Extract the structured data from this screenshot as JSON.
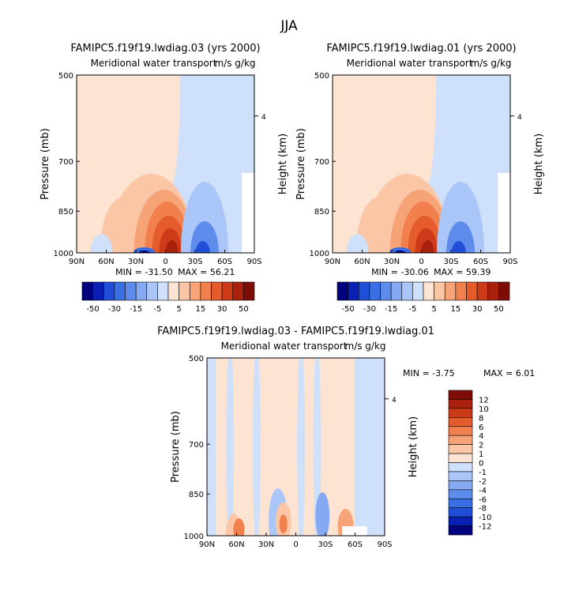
{
  "page_title": "JJA",
  "colors": {
    "neg": [
      "#00007f",
      "#0a1fb4",
      "#1f4fd8",
      "#3a6fe4",
      "#5e8ced",
      "#86aaf2",
      "#aac5f7",
      "#cfe0fb"
    ],
    "pos": [
      "#fde4d2",
      "#fbc6a6",
      "#f7a378",
      "#f2804e",
      "#e45c2c",
      "#cc3a18",
      "#a9200d",
      "#7d0d06"
    ]
  },
  "chart_data": [
    {
      "type": "heatmap",
      "title": "FAMIPC5.f19f19.lwdiag.03 (yrs 2000)",
      "subtitle": "Meridional water transport",
      "units": "m/s g/kg",
      "ylabel": "Pressure (mb)",
      "ylabel_right": "Height (km)",
      "yticks": [
        "500",
        "700",
        "850",
        "1000"
      ],
      "right_tick": "4",
      "xticks": [
        "90N",
        "60N",
        "30N",
        "0",
        "30S",
        "60S",
        "90S"
      ],
      "min_label": "MIN = -31.50",
      "max_label": "MAX = 56.21",
      "colorbar_labels": [
        "-50",
        "-30",
        "-15",
        "-5",
        "5",
        "15",
        "30",
        "50"
      ]
    },
    {
      "type": "heatmap",
      "title": "FAMIPC5.f19f19.lwdiag.01 (yrs 2000)",
      "subtitle": "Meridional water transport",
      "units": "m/s g/kg",
      "ylabel": "Pressure (mb)",
      "ylabel_right": "Height (km)",
      "yticks": [
        "500",
        "700",
        "850",
        "1000"
      ],
      "right_tick": "4",
      "xticks": [
        "90N",
        "60N",
        "30N",
        "0",
        "30S",
        "60S",
        "90S"
      ],
      "min_label": "MIN = -30.06",
      "max_label": "MAX = 59.39",
      "colorbar_labels": [
        "-50",
        "-30",
        "-15",
        "-5",
        "5",
        "15",
        "30",
        "50"
      ]
    },
    {
      "type": "heatmap",
      "title": "FAMIPC5.f19f19.lwdiag.03 - FAMIPC5.f19f19.lwdiag.01",
      "subtitle": "Meridional water transport",
      "units": "m/s g/kg",
      "ylabel": "Pressure (mb)",
      "ylabel_right": "Height (km)",
      "yticks": [
        "500",
        "700",
        "850",
        "1000"
      ],
      "right_tick": "4",
      "xticks": [
        "90N",
        "60N",
        "30N",
        "0",
        "30S",
        "60S",
        "90S"
      ],
      "min_label": "MIN = -3.75",
      "max_label": "MAX = 6.01",
      "colorbar_labels": [
        "12",
        "10",
        "8",
        "6",
        "4",
        "2",
        "1",
        "0",
        "-1",
        "-2",
        "-4",
        "-6",
        "-8",
        "-10",
        "-12"
      ]
    }
  ]
}
